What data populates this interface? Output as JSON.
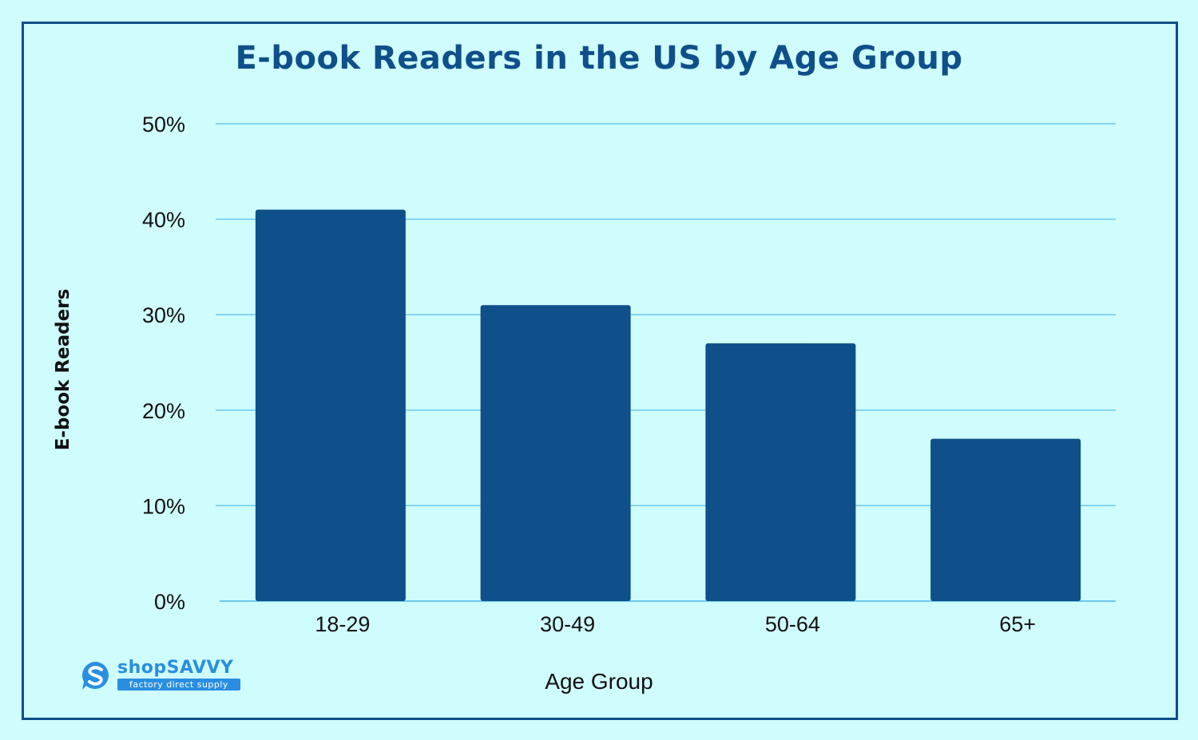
{
  "chart_data": {
    "type": "bar",
    "title": "E-book Readers in the US by Age Group",
    "xlabel": "Age Group",
    "ylabel": "E-book Readers",
    "categories": [
      "18-29",
      "30-49",
      "50-64",
      "65+"
    ],
    "values": [
      41,
      31,
      27,
      17
    ],
    "ylim": [
      0,
      50
    ],
    "yticks": [
      "0%",
      "10%",
      "20%",
      "30%",
      "40%",
      "50%"
    ],
    "grid": true,
    "legend": "none"
  },
  "colors": {
    "background": "#cffcfd",
    "bar": "#0f4f8a",
    "gridline": "#6cc9ee",
    "title": "#0f4f8a",
    "frame": "#0f4f8a",
    "logo": "#2a8ee0"
  },
  "logo": {
    "name": "shopSAVVY",
    "tagline": "factory direct supply",
    "icon": "s-logo-icon"
  }
}
